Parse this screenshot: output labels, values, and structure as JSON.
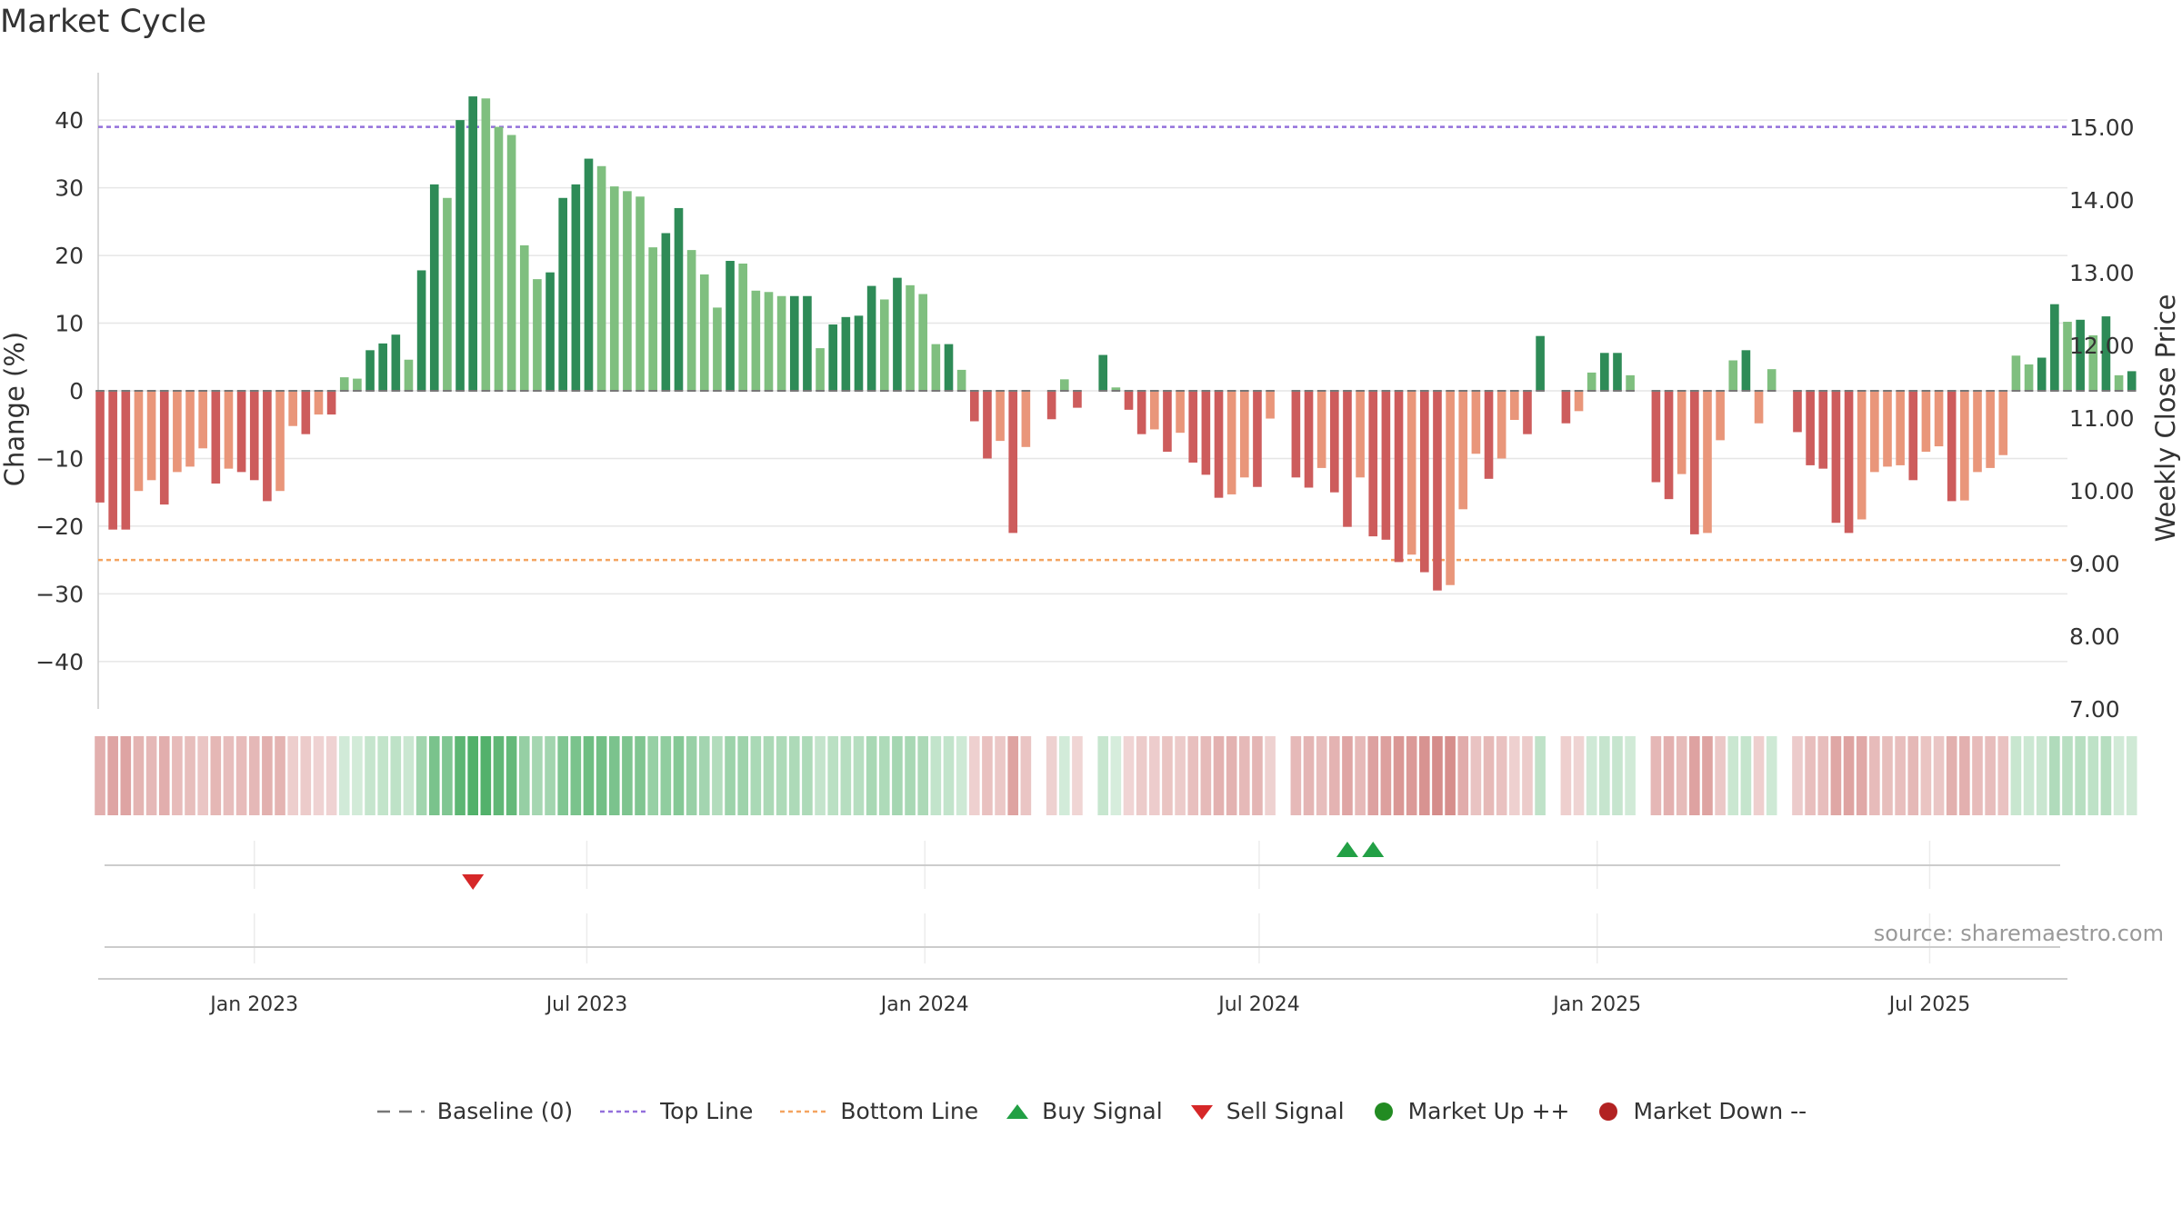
{
  "title": "Market Cycle",
  "source": "source: sharemaestro.com",
  "colors": {
    "up_dark": "#2e8b57",
    "up_light": "#7fbf7f",
    "down_dark": "#cd5c5c",
    "down_light": "#e9967a",
    "top_line": "#9370db",
    "bottom_line": "#f4a460",
    "buy": "#22a045",
    "sell": "#d62728",
    "market_up": "#228b22",
    "market_down": "#b22222"
  },
  "legend": [
    {
      "key": "baseline",
      "label": "Baseline (0)",
      "icon": "dashed-line-icon",
      "color": "#777777"
    },
    {
      "key": "top",
      "label": "Top Line",
      "icon": "dotted-line-icon",
      "color": "#9370db"
    },
    {
      "key": "bottom",
      "label": "Bottom Line",
      "icon": "dotted-line-icon",
      "color": "#f4a460"
    },
    {
      "key": "buy",
      "label": "Buy Signal",
      "icon": "triangle-up-icon",
      "color": "#22a045"
    },
    {
      "key": "sell",
      "label": "Sell Signal",
      "icon": "triangle-down-icon",
      "color": "#d62728"
    },
    {
      "key": "mup",
      "label": "Market Up ++",
      "icon": "circle-icon",
      "color": "#228b22"
    },
    {
      "key": "mdown",
      "label": "Market Down --",
      "icon": "circle-icon",
      "color": "#b22222"
    }
  ],
  "chart_data": {
    "type": "bar",
    "title": "Market Cycle",
    "ylabel": "Change (%)",
    "ylabel_right": "Weekly Close Price",
    "ylim": [
      -47,
      47
    ],
    "yticks": [
      -40,
      -30,
      -20,
      -10,
      0,
      10,
      20,
      30,
      40
    ],
    "ytick_labels": [
      "−40",
      "−30",
      "−20",
      "−10",
      "0",
      "10",
      "20",
      "30",
      "40"
    ],
    "ylim_right": [
      7.0,
      15.75
    ],
    "yticks_right": [
      7.0,
      8.0,
      9.0,
      10.0,
      11.0,
      12.0,
      13.0,
      14.0,
      15.0
    ],
    "ytick_right_labels": [
      "7.00",
      "8.00",
      "9.00",
      "10.00",
      "11.00",
      "12.00",
      "13.00",
      "14.00",
      "15.00"
    ],
    "xlim": [
      "2022-10-08",
      "2025-09-14"
    ],
    "x_ticks": [
      "2023-01-01",
      "2023-07-01",
      "2024-01-01",
      "2024-07-01",
      "2025-01-01",
      "2025-07-01"
    ],
    "x_tick_labels": [
      "Jan 2023",
      "Jul 2023",
      "Jan 2024",
      "Jul 2024",
      "Jan 2025",
      "Jul 2025"
    ],
    "start_week": "2022-10-09",
    "baseline": 0,
    "top_line": 39,
    "bottom_line": -25,
    "grid": true,
    "legend_position": "bottom",
    "values": [
      -16.5,
      -20.5,
      -20.5,
      -14.8,
      -13.2,
      -16.8,
      -12,
      -11.2,
      -8.5,
      -13.7,
      -11.5,
      -12,
      -13.2,
      -16.3,
      -14.8,
      -5.2,
      -6.4,
      -3.5,
      -3.5,
      2,
      1.8,
      6,
      7,
      8.3,
      4.6,
      17.8,
      30.5,
      28.5,
      40,
      43.5,
      43.2,
      39,
      37.8,
      21.5,
      16.5,
      17.5,
      28.5,
      30.5,
      34.3,
      33.2,
      30.2,
      29.5,
      28.7,
      21.2,
      23.3,
      27,
      20.8,
      17.2,
      12.3,
      19.2,
      18.8,
      14.8,
      14.6,
      14,
      14,
      14,
      6.3,
      9.8,
      10.9,
      11.1,
      15.5,
      13.5,
      16.7,
      15.6,
      14.3,
      6.9,
      6.9,
      3.1,
      -4.5,
      -10,
      -7.4,
      -21,
      -8.3,
      null,
      -4.2,
      1.7,
      -2.5,
      null,
      5.3,
      0.5,
      -2.8,
      -6.4,
      -5.7,
      -9,
      -6.2,
      -10.6,
      -12.4,
      -15.8,
      -15.3,
      -12.8,
      -14.2,
      -4.1,
      null,
      -12.8,
      -14.3,
      -11.4,
      -15,
      -20.1,
      -12.8,
      -21.5,
      -22,
      -25.3,
      -24.2,
      -26.8,
      -29.5,
      -28.7,
      -17.5,
      -9.3,
      -13,
      -10,
      -4.3,
      -6.4,
      8.1,
      null,
      -4.8,
      -3,
      2.7,
      5.6,
      5.6,
      2.3,
      null,
      -13.5,
      -16,
      -12.3,
      -21.2,
      -21,
      -7.3,
      4.5,
      6,
      -4.8,
      3.2,
      null,
      -6.1,
      -11,
      -11.5,
      -19.5,
      -21,
      -19,
      -12,
      -11.2,
      -11,
      -13.2,
      -9,
      -8.2,
      -16.3,
      -16.2,
      -12,
      -11.4,
      -9.5,
      5.2,
      3.9,
      4.9,
      12.8,
      10.2,
      10.5,
      8.2,
      11,
      2.3,
      2.9
    ],
    "close_price_line": "not shown",
    "regime_strip": "Weekly colored band above the signal rows: green shades during up-cycles, red shades during down-cycles",
    "signals": [
      {
        "type": "sell",
        "date": "2023-04-30"
      },
      {
        "type": "buy",
        "date": "2024-08-18"
      },
      {
        "type": "buy",
        "date": "2024-09-01"
      }
    ]
  }
}
